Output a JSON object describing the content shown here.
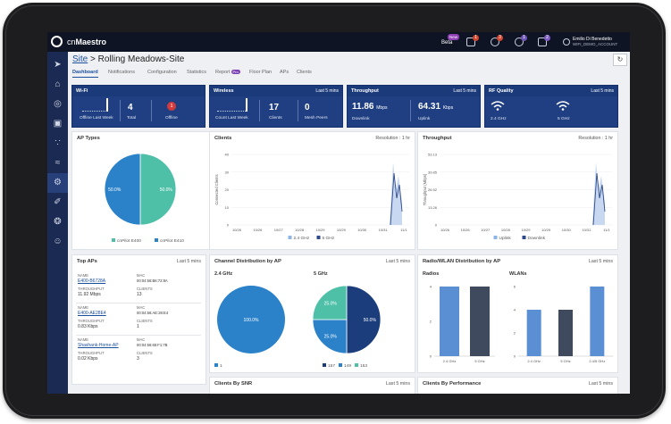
{
  "app": {
    "brand_prefix": "cn",
    "brand_name": "Maestro"
  },
  "topbar": {
    "beta_label": "Beta",
    "new_badge": "New",
    "badges": [
      {
        "name": "bell-icon",
        "count": "1",
        "color": "#d2462f"
      },
      {
        "name": "alarm-icon",
        "count": "3",
        "color": "#d2462f"
      },
      {
        "name": "task-icon",
        "count": "1",
        "color": "#6f55b8"
      },
      {
        "name": "event-icon",
        "count": "2",
        "color": "#7f5cc2"
      },
      {
        "name": "jobs-icon",
        "count": "8",
        "color": "#d2462f"
      }
    ],
    "user_name": "Emilio Di Benedetto",
    "user_account": "WIFI_DEMO_ACCOUNT"
  },
  "sidebar": {
    "items": [
      {
        "name": "sidebar-pin-icon",
        "glyph": "➤"
      },
      {
        "name": "sidebar-home-icon",
        "glyph": "⌂"
      },
      {
        "name": "sidebar-globe-icon",
        "glyph": "◎"
      },
      {
        "name": "sidebar-device-icon",
        "glyph": "▣"
      },
      {
        "name": "sidebar-tower-icon",
        "glyph": "∵"
      },
      {
        "name": "sidebar-wifi-icon",
        "glyph": "≈"
      },
      {
        "name": "sidebar-gear-icon",
        "glyph": "⚙"
      },
      {
        "name": "sidebar-wand-icon",
        "glyph": "✐"
      },
      {
        "name": "sidebar-shield-icon",
        "glyph": "❂"
      },
      {
        "name": "sidebar-users-icon",
        "glyph": "☺"
      }
    ]
  },
  "breadcrumb": {
    "site": "Site",
    "separator": ">",
    "current": "Rolling Meadows-Site"
  },
  "tabs": [
    "Dashboard",
    "Notifications",
    "Configuration",
    "Statistics",
    "Report",
    "Floor Plan",
    "APs",
    "Clients"
  ],
  "report_badge": "Pro",
  "cards": {
    "wifi": {
      "title": "Wi-Fi",
      "offline_last_week_label": "Offline Last Week",
      "total": "4",
      "total_label": "Total",
      "offline": "1",
      "offline_label": "Offline"
    },
    "wireless": {
      "title": "Wireless",
      "range": "Last 5 mins",
      "count_last_week_label": "Count Last Week",
      "clients": "17",
      "clients_label": "Clients",
      "mesh": "0",
      "mesh_label": "Mesh Peers"
    },
    "throughput": {
      "title": "Throughput",
      "range": "Last 5 mins",
      "downlink": "11.86",
      "downlink_unit": "Mbps",
      "downlink_label": "Downlink",
      "uplink": "64.31",
      "uplink_unit": "Kbps",
      "uplink_label": "Uplink"
    },
    "rf": {
      "title": "RF Quality",
      "range": "Last 5 mins",
      "band_a": "2.4 GHz",
      "band_b": "5 GHz"
    }
  },
  "panels": {
    "ap_types": {
      "title": "AP Types"
    },
    "clients": {
      "title": "Clients",
      "resolution": "Resolution : 1 hr"
    },
    "throughput": {
      "title": "Throughput",
      "resolution": "Resolution : 1 hr"
    },
    "top_aps": {
      "title": "Top APs",
      "range": "Last 5 mins",
      "name_key": "NAME",
      "mac_key": "MAC",
      "throughput_key": "THROUGHPUT",
      "clients_key": "CLIENTS",
      "rows": [
        {
          "name": "E400-B6728A",
          "mac": "00:04:56:B6:72:8A",
          "throughput": "11.92 Mbps",
          "clients": "13"
        },
        {
          "name": "E400-AE28E4",
          "mac": "00:04:56:AE:28:E4",
          "throughput": "0.83 Kbps",
          "clients": "1"
        },
        {
          "name": "Shashank-Home-AP",
          "mac": "00:04:56:65:F1:7B",
          "throughput": "0.02 Kbps",
          "clients": "3"
        }
      ]
    },
    "channel": {
      "title": "Channel Distribution by AP",
      "range": "Last 5 mins",
      "sub_a": "2.4 GHz",
      "sub_b": "5 GHz"
    },
    "radio": {
      "title": "Radio/WLAN Distribution by AP",
      "range": "Last 5 mins",
      "sub_a": "Radios",
      "sub_b": "WLANs"
    },
    "snr": {
      "title": "Clients By SNR",
      "range": "Last 5 mins"
    },
    "perf": {
      "title": "Clients By Performance",
      "range": "Last 5 mins"
    }
  },
  "chart_data": [
    {
      "type": "pie",
      "title": "AP Types",
      "labels": [
        "cnPilot E400",
        "cnPilot E410"
      ],
      "values": [
        50,
        50
      ],
      "data_labels": [
        "50.0%",
        "50.0%"
      ],
      "colors": [
        "#4fc0a8",
        "#2b82c9"
      ],
      "legend": "bottom"
    },
    {
      "type": "line",
      "title": "Clients",
      "ylabel": "Connected Clients",
      "x": [
        "10/26",
        "10/26",
        "10/27",
        "10/28",
        "10/29",
        "10/29",
        "10/30",
        "10/31",
        "11/1"
      ],
      "yticks": [
        "0",
        "10",
        "20",
        "30",
        "40"
      ],
      "ylim": [
        0,
        40
      ],
      "series": [
        {
          "name": "2.4 GHz",
          "color": "#8fb5e6"
        },
        {
          "name": "5 GHz",
          "color": "#2f4a8a"
        }
      ],
      "legend": "bottom"
    },
    {
      "type": "line",
      "title": "Throughput",
      "ylabel": "Throughput (Mbps)",
      "x": [
        "10/26",
        "10/26",
        "10/27",
        "10/28",
        "10/29",
        "10/29",
        "10/30",
        "10/31",
        "11/1"
      ],
      "yticks": [
        "0",
        "13.26",
        "26.52",
        "39.85",
        "53.13"
      ],
      "ylim": [
        0,
        53.13
      ],
      "series": [
        {
          "name": "Uplink",
          "color": "#8fb5e6"
        },
        {
          "name": "Downlink",
          "color": "#2f4a8a"
        }
      ],
      "legend": "bottom"
    },
    {
      "type": "pie",
      "title": "2.4 GHz",
      "labels": [
        "1"
      ],
      "values": [
        100
      ],
      "data_labels": [
        "100.0%"
      ],
      "colors": [
        "#2b82c9"
      ],
      "legend": "bottom"
    },
    {
      "type": "pie",
      "title": "5 GHz",
      "labels": [
        "157",
        "149",
        "153"
      ],
      "values": [
        50,
        25,
        25
      ],
      "data_labels": [
        "50.0%",
        "25.0%",
        "25.0%"
      ],
      "colors": [
        "#1b3d7c",
        "#2b82c9",
        "#4fc0a8"
      ],
      "legend": "bottom"
    },
    {
      "type": "bar",
      "title": "Radios",
      "categories": [
        "2.4 GHz",
        "5 GHz"
      ],
      "values": [
        4,
        4
      ],
      "yticks": [
        "0",
        "2",
        "4"
      ],
      "ylim": [
        0,
        4
      ],
      "colors": [
        "#5b8fd4",
        "#3f4a5e"
      ]
    },
    {
      "type": "bar",
      "title": "WLANs",
      "categories": [
        "2.4 GHz",
        "5 GHz",
        "2.4/5 GHz"
      ],
      "values": [
        4,
        4,
        6
      ],
      "yticks": [
        "0",
        "2",
        "4",
        "6"
      ],
      "ylim": [
        0,
        6
      ],
      "colors": [
        "#5b8fd4",
        "#3f4a5e",
        "#5b8fd4"
      ]
    }
  ]
}
